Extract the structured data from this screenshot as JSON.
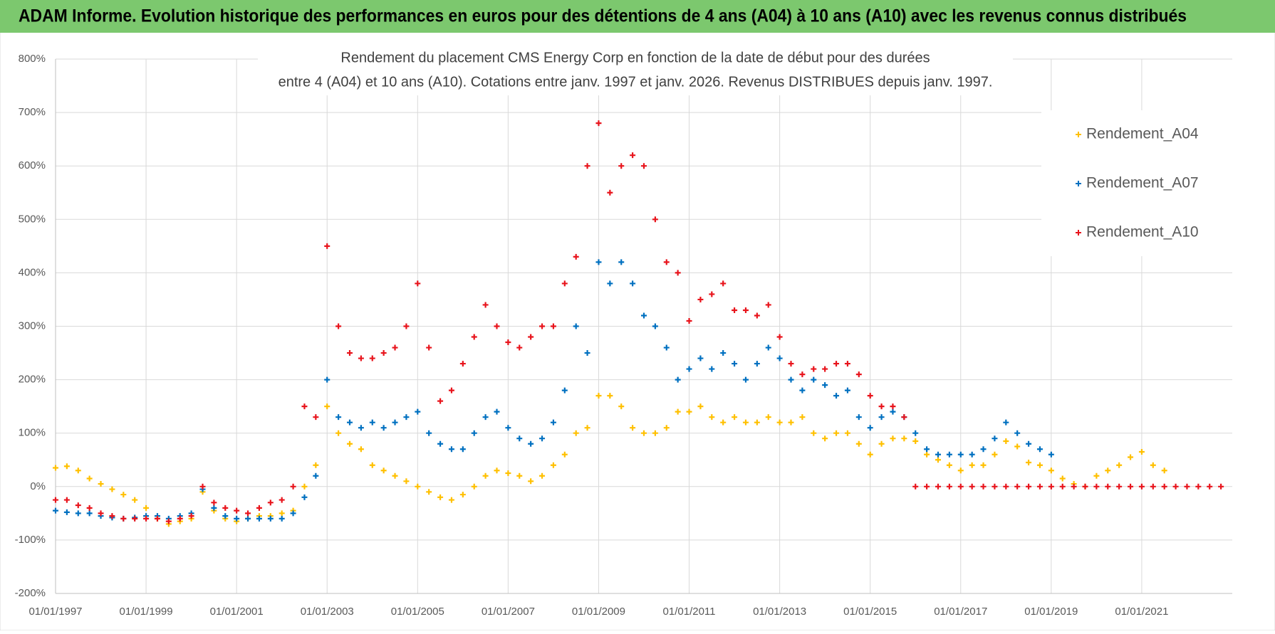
{
  "header": {
    "title": "ADAM Informe. Evolution historique des performances en euros pour des détentions de 4 ans (A04) à 10 ans (A10) avec les revenus connus distribués"
  },
  "chart_data": {
    "type": "scatter",
    "title": "Rendement du placement CMS Energy Corp en fonction de la date de début pour des durées",
    "subtitle": "entre 4 (A04) et 10 ans (A10).  Cotations entre janv. 1997 et janv. 2026. Revenus DISTRIBUES  depuis janv. 1997.",
    "legend": "top-right",
    "grid": true,
    "xlim": [
      "1997-01-01",
      "2023-01-01"
    ],
    "xticks": [
      {
        "value": "1997-01-01",
        "label": "01/01/1997"
      },
      {
        "value": "1999-01-01",
        "label": "01/01/1999"
      },
      {
        "value": "2001-01-01",
        "label": "01/01/2001"
      },
      {
        "value": "2003-01-01",
        "label": "01/01/2003"
      },
      {
        "value": "2005-01-01",
        "label": "01/01/2005"
      },
      {
        "value": "2007-01-01",
        "label": "01/01/2007"
      },
      {
        "value": "2009-01-01",
        "label": "01/01/2009"
      },
      {
        "value": "2011-01-01",
        "label": "01/01/2011"
      },
      {
        "value": "2013-01-01",
        "label": "01/01/2013"
      },
      {
        "value": "2015-01-01",
        "label": "01/01/2015"
      },
      {
        "value": "2017-01-01",
        "label": "01/01/2017"
      },
      {
        "value": "2019-01-01",
        "label": "01/01/2019"
      },
      {
        "value": "2021-01-01",
        "label": "01/01/2021"
      }
    ],
    "ylim": [
      -200,
      800
    ],
    "yticks": [
      {
        "value": -200,
        "label": "-200%"
      },
      {
        "value": -100,
        "label": "-100%"
      },
      {
        "value": 0,
        "label": "0%"
      },
      {
        "value": 100,
        "label": "100%"
      },
      {
        "value": 200,
        "label": "200%"
      },
      {
        "value": 300,
        "label": "300%"
      },
      {
        "value": 400,
        "label": "400%"
      },
      {
        "value": 500,
        "label": "500%"
      },
      {
        "value": 600,
        "label": "600%"
      },
      {
        "value": 700,
        "label": "700%"
      },
      {
        "value": 800,
        "label": "800%"
      }
    ],
    "x": [
      "1997-01-01",
      "1997-04-01",
      "1997-07-01",
      "1997-10-01",
      "1998-01-01",
      "1998-04-01",
      "1998-07-01",
      "1998-10-01",
      "1999-01-01",
      "1999-04-01",
      "1999-07-01",
      "1999-10-01",
      "2000-01-01",
      "2000-04-01",
      "2000-07-01",
      "2000-10-01",
      "2001-01-01",
      "2001-04-01",
      "2001-07-01",
      "2001-10-01",
      "2002-01-01",
      "2002-04-01",
      "2002-07-01",
      "2002-10-01",
      "2003-01-01",
      "2003-04-01",
      "2003-07-01",
      "2003-10-01",
      "2004-01-01",
      "2004-04-01",
      "2004-07-01",
      "2004-10-01",
      "2005-01-01",
      "2005-04-01",
      "2005-07-01",
      "2005-10-01",
      "2006-01-01",
      "2006-04-01",
      "2006-07-01",
      "2006-10-01",
      "2007-01-01",
      "2007-04-01",
      "2007-07-01",
      "2007-10-01",
      "2008-01-01",
      "2008-04-01",
      "2008-07-01",
      "2008-10-01",
      "2009-01-01",
      "2009-04-01",
      "2009-07-01",
      "2009-10-01",
      "2010-01-01",
      "2010-04-01",
      "2010-07-01",
      "2010-10-01",
      "2011-01-01",
      "2011-04-01",
      "2011-07-01",
      "2011-10-01",
      "2012-01-01",
      "2012-04-01",
      "2012-07-01",
      "2012-10-01",
      "2013-01-01",
      "2013-04-01",
      "2013-07-01",
      "2013-10-01",
      "2014-01-01",
      "2014-04-01",
      "2014-07-01",
      "2014-10-01",
      "2015-01-01",
      "2015-04-01",
      "2015-07-01",
      "2015-10-01",
      "2016-01-01",
      "2016-04-01",
      "2016-07-01",
      "2016-10-01",
      "2017-01-01",
      "2017-04-01",
      "2017-07-01",
      "2017-10-01",
      "2018-01-01",
      "2018-04-01",
      "2018-07-01",
      "2018-10-01",
      "2019-01-01",
      "2019-04-01",
      "2019-07-01",
      "2019-10-01",
      "2020-01-01",
      "2020-04-01",
      "2020-07-01",
      "2020-10-01",
      "2021-01-01",
      "2021-04-01",
      "2021-07-01",
      "2021-10-01",
      "2022-01-01",
      "2022-04-01",
      "2022-07-01",
      "2022-10-01"
    ],
    "series": [
      {
        "name": "Rendement_A04",
        "color": "#ffc000",
        "values": [
          35,
          38,
          30,
          15,
          5,
          -5,
          -15,
          -25,
          -40,
          -60,
          -70,
          -65,
          -60,
          -10,
          -45,
          -60,
          -65,
          -60,
          -55,
          -55,
          -50,
          -45,
          0,
          40,
          150,
          100,
          80,
          70,
          40,
          30,
          20,
          10,
          0,
          -10,
          -20,
          -25,
          -15,
          0,
          20,
          30,
          25,
          20,
          10,
          20,
          40,
          60,
          100,
          110,
          170,
          170,
          150,
          110,
          100,
          100,
          110,
          140,
          140,
          150,
          130,
          120,
          130,
          120,
          120,
          130,
          120,
          120,
          130,
          100,
          90,
          100,
          100,
          80,
          60,
          80,
          90,
          90,
          85,
          60,
          50,
          40,
          30,
          40,
          40,
          60,
          85,
          75,
          45,
          40,
          30,
          15,
          5,
          0,
          20,
          30,
          40,
          55,
          65,
          40,
          30,
          null,
          null,
          null,
          null,
          null
        ]
      },
      {
        "name": "Rendement_A07",
        "color": "#0070c0",
        "values": [
          -45,
          -48,
          -50,
          -50,
          -55,
          -58,
          -60,
          -58,
          -55,
          -55,
          -60,
          -55,
          -50,
          -5,
          -40,
          -55,
          -60,
          -60,
          -60,
          -60,
          -60,
          -50,
          -20,
          20,
          200,
          130,
          120,
          110,
          120,
          110,
          120,
          130,
          140,
          100,
          80,
          70,
          70,
          100,
          130,
          140,
          110,
          90,
          80,
          90,
          120,
          180,
          300,
          250,
          420,
          380,
          420,
          380,
          320,
          300,
          260,
          200,
          220,
          240,
          220,
          250,
          230,
          200,
          230,
          260,
          240,
          200,
          180,
          200,
          190,
          170,
          180,
          130,
          110,
          130,
          140,
          130,
          100,
          70,
          60,
          60,
          60,
          60,
          70,
          90,
          120,
          100,
          80,
          70,
          60,
          null,
          null,
          null,
          null,
          null,
          null,
          null,
          null,
          null,
          null,
          null,
          null,
          null,
          null,
          null
        ]
      },
      {
        "name": "Rendement_A10",
        "color": "#e8141c",
        "values": [
          -25,
          -25,
          -35,
          -40,
          -50,
          -55,
          -60,
          -60,
          -60,
          -60,
          -65,
          -60,
          -55,
          0,
          -30,
          -40,
          -45,
          -50,
          -40,
          -30,
          -25,
          0,
          150,
          130,
          450,
          300,
          250,
          240,
          240,
          250,
          260,
          300,
          380,
          260,
          160,
          180,
          230,
          280,
          340,
          300,
          270,
          260,
          280,
          300,
          300,
          380,
          430,
          600,
          680,
          550,
          600,
          620,
          600,
          500,
          420,
          400,
          310,
          350,
          360,
          380,
          330,
          330,
          320,
          340,
          280,
          230,
          210,
          220,
          220,
          230,
          230,
          210,
          170,
          150,
          150,
          130,
          0,
          0,
          0,
          0,
          0,
          0,
          0,
          0,
          0,
          0,
          0,
          0,
          0,
          0,
          0,
          0,
          0,
          0,
          0,
          0,
          0,
          0,
          0,
          0,
          0,
          0,
          0,
          0
        ]
      }
    ]
  }
}
